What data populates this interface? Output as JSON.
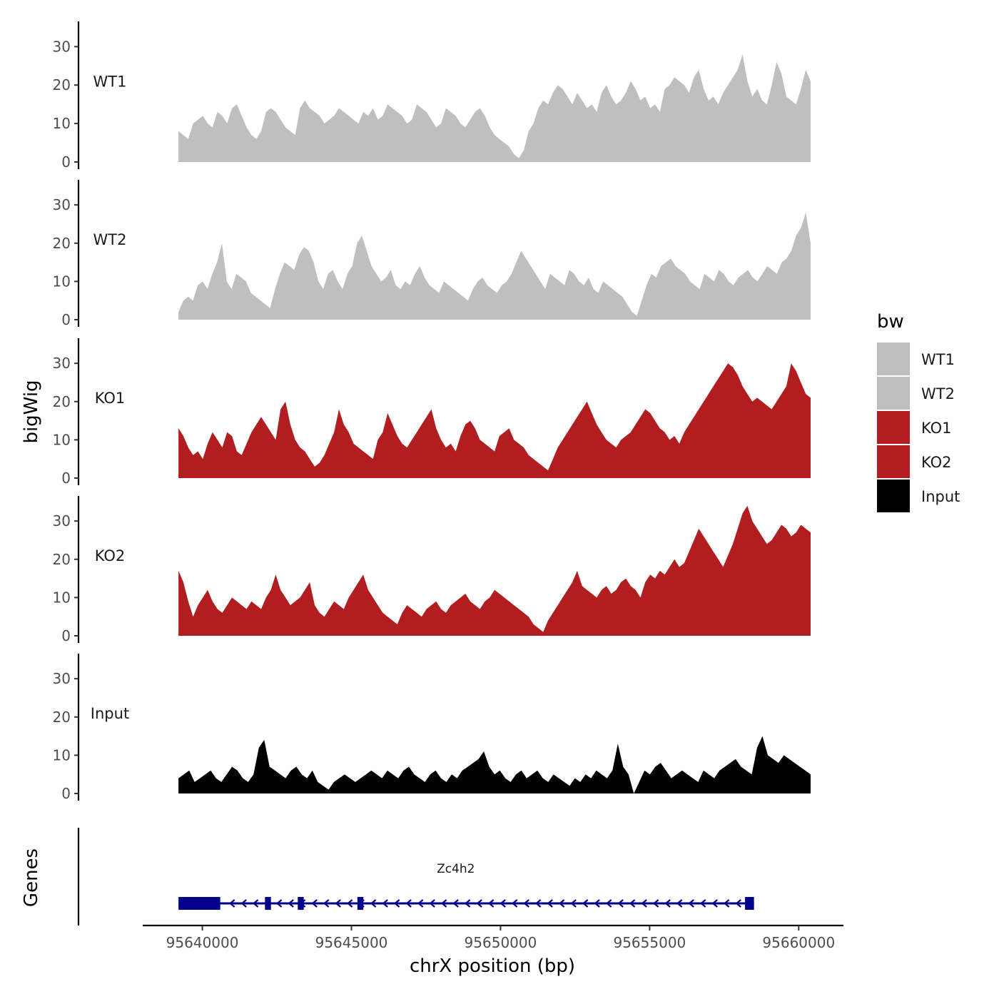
{
  "chart_data": {
    "type": "area",
    "ylabel": "bigWig",
    "xlabel": "chrX position (bp)",
    "xlim": [
      95638000,
      95661500
    ],
    "ylim": [
      0,
      36
    ],
    "yticks": [
      0,
      10,
      20,
      30
    ],
    "xticks": [
      95640000,
      95645000,
      95650000,
      95655000,
      95660000
    ],
    "xtick_labels": [
      "95640000",
      "95645000",
      "95650000",
      "95655000",
      "95660000"
    ],
    "ytick_labels": [
      "0",
      "10",
      "20",
      "30"
    ],
    "legend": {
      "title": "bw",
      "position": "right",
      "entries": [
        {
          "label": "WT1",
          "color": "#bfbfbf"
        },
        {
          "label": "WT2",
          "color": "#bfbfbf"
        },
        {
          "label": "KO1",
          "color": "#b21d1f"
        },
        {
          "label": "KO2",
          "color": "#b21d1f"
        },
        {
          "label": "Input",
          "color": "#000000"
        }
      ]
    },
    "x_start": 95639200,
    "x_end": 95660400,
    "series": [
      {
        "name": "WT1",
        "color": "#bfbfbf",
        "values": [
          8,
          7,
          6,
          10,
          11,
          12,
          10,
          9,
          13,
          12,
          10,
          14,
          15,
          12,
          9,
          7,
          6,
          8,
          13,
          14,
          13,
          11,
          9,
          8,
          7,
          14,
          16,
          14,
          13,
          12,
          10,
          11,
          12,
          14,
          13,
          12,
          11,
          10,
          13,
          12,
          14,
          11,
          12,
          15,
          14,
          13,
          12,
          10,
          11,
          15,
          14,
          13,
          11,
          9,
          10,
          14,
          13,
          12,
          10,
          9,
          11,
          13,
          14,
          12,
          9,
          7,
          6,
          5,
          4,
          2,
          1,
          3,
          8,
          10,
          14,
          16,
          15,
          18,
          20,
          19,
          17,
          15,
          18,
          16,
          14,
          15,
          13,
          18,
          20,
          17,
          15,
          16,
          18,
          21,
          19,
          16,
          17,
          14,
          15,
          13,
          19,
          20,
          22,
          21,
          20,
          18,
          22,
          24,
          19,
          16,
          17,
          15,
          18,
          20,
          22,
          24,
          28,
          21,
          17,
          19,
          16,
          15,
          20,
          26,
          23,
          17,
          16,
          15,
          19,
          24,
          21
        ]
      },
      {
        "name": "WT2",
        "color": "#bfbfbf",
        "values": [
          2,
          5,
          6,
          5,
          9,
          10,
          8,
          12,
          15,
          20,
          10,
          8,
          12,
          11,
          10,
          7,
          6,
          5,
          4,
          3,
          8,
          12,
          15,
          14,
          13,
          17,
          19,
          18,
          15,
          10,
          8,
          12,
          13,
          10,
          8,
          12,
          14,
          20,
          22,
          18,
          14,
          12,
          10,
          11,
          13,
          9,
          8,
          10,
          9,
          12,
          14,
          11,
          9,
          8,
          7,
          10,
          9,
          8,
          7,
          6,
          5,
          8,
          10,
          11,
          9,
          8,
          7,
          9,
          10,
          12,
          15,
          18,
          16,
          14,
          12,
          10,
          8,
          12,
          11,
          10,
          9,
          13,
          12,
          10,
          9,
          11,
          8,
          7,
          10,
          9,
          8,
          7,
          6,
          4,
          2,
          1,
          5,
          9,
          12,
          11,
          14,
          15,
          16,
          14,
          13,
          12,
          10,
          9,
          8,
          12,
          11,
          10,
          13,
          12,
          10,
          9,
          11,
          12,
          13,
          11,
          10,
          12,
          14,
          13,
          12,
          15,
          16,
          18,
          22,
          24,
          28,
          20
        ]
      },
      {
        "name": "KO1",
        "color": "#b21d1f",
        "values": [
          13,
          11,
          8,
          6,
          7,
          5,
          9,
          12,
          10,
          8,
          12,
          11,
          7,
          6,
          9,
          12,
          14,
          16,
          14,
          12,
          10,
          18,
          20,
          14,
          10,
          8,
          7,
          5,
          3,
          4,
          6,
          9,
          12,
          18,
          14,
          12,
          9,
          8,
          7,
          6,
          5,
          10,
          12,
          17,
          14,
          11,
          9,
          8,
          10,
          12,
          14,
          16,
          18,
          13,
          10,
          8,
          9,
          7,
          11,
          14,
          15,
          13,
          10,
          9,
          8,
          7,
          11,
          12,
          13,
          10,
          9,
          8,
          6,
          5,
          4,
          3,
          2,
          5,
          8,
          10,
          12,
          14,
          16,
          18,
          20,
          17,
          14,
          12,
          10,
          9,
          8,
          10,
          11,
          12,
          14,
          16,
          18,
          17,
          15,
          13,
          12,
          10,
          11,
          9,
          12,
          14,
          16,
          18,
          20,
          22,
          24,
          26,
          28,
          30,
          29,
          27,
          24,
          22,
          20,
          21,
          20,
          19,
          18,
          20,
          22,
          24,
          30,
          28,
          25,
          22,
          21
        ]
      },
      {
        "name": "KO2",
        "color": "#b21d1f",
        "values": [
          17,
          14,
          9,
          5,
          8,
          10,
          12,
          9,
          7,
          6,
          8,
          10,
          9,
          8,
          7,
          9,
          8,
          7,
          10,
          12,
          16,
          12,
          10,
          8,
          9,
          10,
          12,
          14,
          8,
          6,
          5,
          7,
          9,
          8,
          7,
          10,
          12,
          14,
          16,
          12,
          10,
          8,
          6,
          5,
          4,
          3,
          6,
          8,
          7,
          6,
          5,
          7,
          8,
          9,
          7,
          6,
          8,
          9,
          10,
          11,
          9,
          8,
          7,
          9,
          10,
          12,
          11,
          10,
          9,
          8,
          7,
          6,
          5,
          3,
          2,
          1,
          4,
          6,
          8,
          10,
          12,
          14,
          17,
          13,
          12,
          11,
          10,
          12,
          13,
          11,
          12,
          14,
          15,
          13,
          12,
          10,
          14,
          16,
          15,
          17,
          16,
          18,
          20,
          18,
          19,
          22,
          25,
          28,
          26,
          24,
          22,
          20,
          18,
          21,
          24,
          28,
          32,
          34,
          30,
          28,
          26,
          24,
          25,
          27,
          29,
          28,
          26,
          27,
          29,
          28,
          27
        ]
      },
      {
        "name": "Input",
        "color": "#000000",
        "values": [
          4,
          5,
          6,
          3,
          4,
          5,
          6,
          4,
          3,
          5,
          7,
          6,
          4,
          3,
          5,
          12,
          14,
          7,
          6,
          5,
          4,
          6,
          7,
          5,
          4,
          6,
          3,
          2,
          1,
          3,
          4,
          5,
          4,
          3,
          4,
          5,
          6,
          5,
          4,
          6,
          5,
          4,
          6,
          7,
          5,
          4,
          3,
          5,
          6,
          4,
          3,
          5,
          4,
          6,
          7,
          8,
          9,
          11,
          7,
          5,
          6,
          4,
          3,
          5,
          6,
          4,
          5,
          6,
          4,
          3,
          5,
          4,
          3,
          2,
          4,
          3,
          5,
          4,
          6,
          5,
          4,
          6,
          13,
          7,
          5,
          0,
          3,
          6,
          5,
          7,
          8,
          6,
          4,
          5,
          6,
          5,
          4,
          3,
          6,
          5,
          4,
          6,
          7,
          8,
          9,
          7,
          6,
          5,
          12,
          15,
          10,
          9,
          8,
          10,
          9,
          8,
          7,
          6,
          5
        ]
      }
    ],
    "genes_label": "Genes",
    "gene": {
      "name": "Zc4h2",
      "strand": "-",
      "start": 95639200,
      "end": 95658500,
      "color": "#00008b",
      "exons": [
        [
          95639200,
          95640600
        ],
        [
          95642100,
          95642300
        ],
        [
          95643200,
          95643400
        ],
        [
          95645200,
          95645400
        ],
        [
          95658200,
          95658500
        ]
      ]
    }
  }
}
